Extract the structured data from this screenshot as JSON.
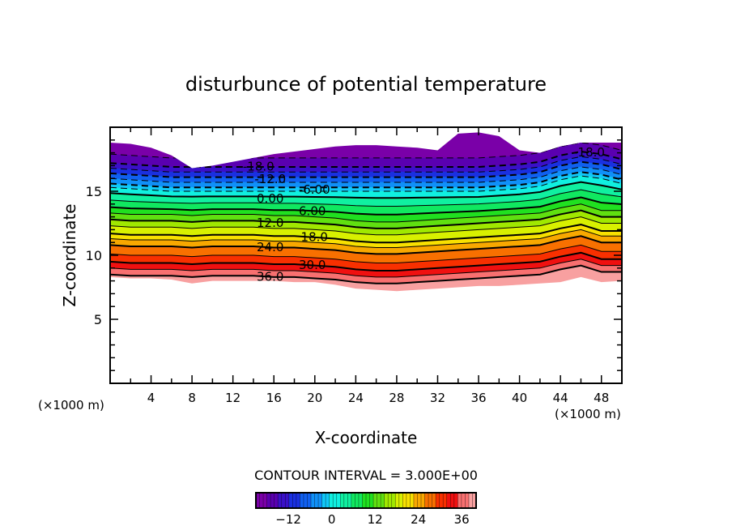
{
  "chart_data": {
    "type": "contour",
    "title": "disturbunce of potential temperature",
    "xlabel": "X-coordinate",
    "ylabel": "Z-coordinate",
    "x_unit": "(×1000 m)",
    "y_unit": "(×1000 m)",
    "xlim": [
      0,
      50
    ],
    "ylim": [
      0,
      20
    ],
    "x_ticks": [
      4,
      8,
      12,
      16,
      20,
      24,
      28,
      32,
      36,
      40,
      44,
      48
    ],
    "y_ticks": [
      5,
      10,
      15
    ],
    "contour_interval_text": "CONTOUR INTERVAL = 3.000E+00",
    "x_grid": [
      0,
      2,
      4,
      6,
      8,
      10,
      12,
      14,
      16,
      18,
      20,
      22,
      24,
      26,
      28,
      30,
      32,
      34,
      36,
      38,
      40,
      42,
      44,
      46,
      48,
      50
    ],
    "top_boundary": [
      18.8,
      18.7,
      18.4,
      17.8,
      16.8,
      17.0,
      17.3,
      17.6,
      17.9,
      18.1,
      18.3,
      18.5,
      18.6,
      18.6,
      18.5,
      18.4,
      18.2,
      19.5,
      19.6,
      19.3,
      18.2,
      18.0,
      18.5,
      18.8,
      18.8,
      18.8
    ],
    "bottom_boundary": [
      8.3,
      8.2,
      8.2,
      8.1,
      7.8,
      8.0,
      8.0,
      8.0,
      8.0,
      7.9,
      7.9,
      7.7,
      7.4,
      7.3,
      7.2,
      7.3,
      7.4,
      7.5,
      7.6,
      7.6,
      7.7,
      7.8,
      7.9,
      8.3,
      7.9,
      8.0
    ],
    "levels": [
      -21,
      -18,
      -15,
      -12,
      -9,
      -6,
      -3,
      0,
      3,
      6,
      9,
      12,
      15,
      18,
      21,
      24,
      27,
      30,
      33,
      36
    ],
    "level_base_height": [
      17.6,
      16.9,
      16.5,
      16.1,
      15.7,
      15.3,
      15.0,
      14.6,
      14.1,
      13.6,
      13.2,
      12.7,
      12.2,
      11.6,
      11.2,
      10.7,
      10.0,
      9.4,
      8.9,
      8.4
    ],
    "perturbation_lower": [
      0.1,
      0.0,
      0.0,
      0.0,
      -0.1,
      0.0,
      0.0,
      0.0,
      -0.1,
      -0.1,
      -0.2,
      -0.3,
      -0.5,
      -0.6,
      -0.6,
      -0.5,
      -0.4,
      -0.3,
      -0.2,
      -0.1,
      0.0,
      0.1,
      0.5,
      0.8,
      0.3,
      0.3
    ],
    "perturbation_upper": [
      0.3,
      0.2,
      0.1,
      0.0,
      0.0,
      0.0,
      0.0,
      0.0,
      0.0,
      0.0,
      0.0,
      0.0,
      0.0,
      0.0,
      0.0,
      0.0,
      0.0,
      0.0,
      0.0,
      0.1,
      0.2,
      0.4,
      0.9,
      1.2,
      1.0,
      0.6
    ],
    "contour_labels": [
      {
        "text": "-18.0",
        "x": 14.5,
        "z": 17.0
      },
      {
        "text": "-12.0",
        "x": 17.7,
        "z": 16.0
      },
      {
        "text": "-6.00",
        "x": 17.9,
        "z": 15.2
      },
      {
        "text": "0.00",
        "x": 17.7,
        "z": 14.5
      },
      {
        "text": "6.00",
        "x": 17.7,
        "z": 13.5
      },
      {
        "text": "12.0",
        "x": 17.7,
        "z": 12.6
      },
      {
        "text": "18.0",
        "x": 17.9,
        "z": 11.5
      },
      {
        "text": "24.0",
        "x": 17.7,
        "z": 10.7
      },
      {
        "text": "30.0",
        "x": 17.7,
        "z": 9.3
      },
      {
        "text": "36.0",
        "x": 17.7,
        "z": 8.4
      },
      {
        "text": "-18.0",
        "x": 46.8,
        "z": 18.1
      }
    ],
    "colorbar": {
      "range": [
        -21,
        40
      ],
      "ticks": [
        -12,
        0,
        12,
        24,
        36
      ],
      "colors": [
        "#7a00a8",
        "#5a00b0",
        "#3a10c8",
        "#1a30e0",
        "#1060f0",
        "#1090f8",
        "#10c8f8",
        "#10f0e0",
        "#10f0a0",
        "#10e860",
        "#20e020",
        "#60e010",
        "#a0e800",
        "#d8f000",
        "#f8e000",
        "#f8a800",
        "#f87000",
        "#f83000",
        "#f01010",
        "#f87070",
        "#f8a0a0"
      ]
    }
  }
}
